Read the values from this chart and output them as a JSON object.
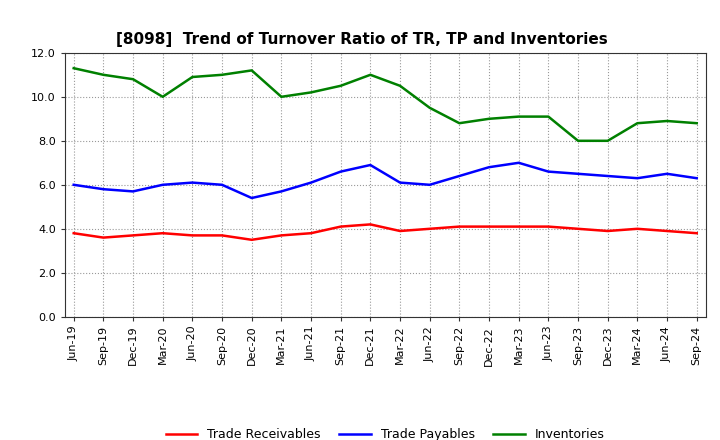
{
  "title": "[8098]  Trend of Turnover Ratio of TR, TP and Inventories",
  "xlabels": [
    "Jun-19",
    "Sep-19",
    "Dec-19",
    "Mar-20",
    "Jun-20",
    "Sep-20",
    "Dec-20",
    "Mar-21",
    "Jun-21",
    "Sep-21",
    "Dec-21",
    "Mar-22",
    "Jun-22",
    "Sep-22",
    "Dec-22",
    "Mar-23",
    "Jun-23",
    "Sep-23",
    "Dec-23",
    "Mar-24",
    "Jun-24",
    "Sep-24"
  ],
  "trade_receivables": [
    3.8,
    3.6,
    3.7,
    3.8,
    3.7,
    3.7,
    3.5,
    3.7,
    3.8,
    4.1,
    4.2,
    3.9,
    4.0,
    4.1,
    4.1,
    4.1,
    4.1,
    4.0,
    3.9,
    4.0,
    3.9,
    3.8
  ],
  "trade_payables": [
    6.0,
    5.8,
    5.7,
    6.0,
    6.1,
    6.0,
    5.4,
    5.7,
    6.1,
    6.6,
    6.9,
    6.1,
    6.0,
    6.4,
    6.8,
    7.0,
    6.6,
    6.5,
    6.4,
    6.3,
    6.5,
    6.3
  ],
  "inventories": [
    11.3,
    11.0,
    10.8,
    10.0,
    10.9,
    11.0,
    11.2,
    10.0,
    10.2,
    10.5,
    11.0,
    10.5,
    9.5,
    8.8,
    9.0,
    9.1,
    9.1,
    8.0,
    8.0,
    8.8,
    8.9,
    8.8
  ],
  "tr_color": "#ff0000",
  "tp_color": "#0000ff",
  "inv_color": "#008000",
  "ylim": [
    0.0,
    12.0
  ],
  "yticks": [
    0.0,
    2.0,
    4.0,
    6.0,
    8.0,
    10.0,
    12.0
  ],
  "legend_labels": [
    "Trade Receivables",
    "Trade Payables",
    "Inventories"
  ],
  "background_color": "#ffffff",
  "grid_color": "#999999",
  "spine_color": "#333333",
  "title_fontsize": 11,
  "tick_fontsize": 8,
  "linewidth": 1.8
}
